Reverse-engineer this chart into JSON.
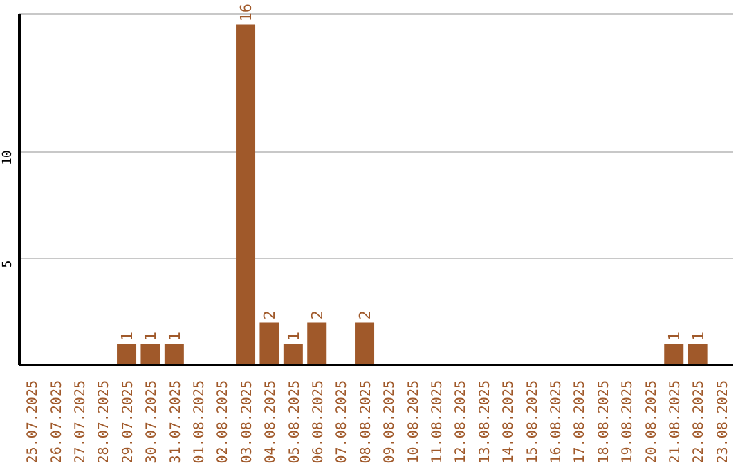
{
  "chart_data": {
    "type": "bar",
    "categories": [
      "25.07.2025",
      "26.07.2025",
      "27.07.2025",
      "28.07.2025",
      "29.07.2025",
      "30.07.2025",
      "31.07.2025",
      "01.08.2025",
      "02.08.2025",
      "03.08.2025",
      "04.08.2025",
      "05.08.2025",
      "06.08.2025",
      "07.08.2025",
      "08.08.2025",
      "09.08.2025",
      "10.08.2025",
      "11.08.2025",
      "12.08.2025",
      "13.08.2025",
      "14.08.2025",
      "15.08.2025",
      "16.08.2025",
      "17.08.2025",
      "18.08.2025",
      "19.08.2025",
      "20.08.2025",
      "21.08.2025",
      "22.08.2025",
      "23.08.2025"
    ],
    "values": [
      0,
      0,
      0,
      0,
      1,
      1,
      1,
      0,
      0,
      16,
      2,
      1,
      2,
      0,
      2,
      0,
      0,
      0,
      0,
      0,
      0,
      0,
      0,
      0,
      0,
      0,
      0,
      1,
      1,
      0
    ],
    "value_labels": [
      null,
      null,
      null,
      null,
      "1",
      "1",
      "1",
      null,
      null,
      "16",
      "2",
      "1",
      "2",
      null,
      "2",
      null,
      null,
      null,
      null,
      null,
      null,
      null,
      null,
      null,
      null,
      null,
      null,
      "1",
      "1",
      null
    ],
    "color": "#a0592a",
    "ylim": [
      0,
      16.5
    ],
    "yticks": [
      5,
      10
    ],
    "grid": "y"
  }
}
